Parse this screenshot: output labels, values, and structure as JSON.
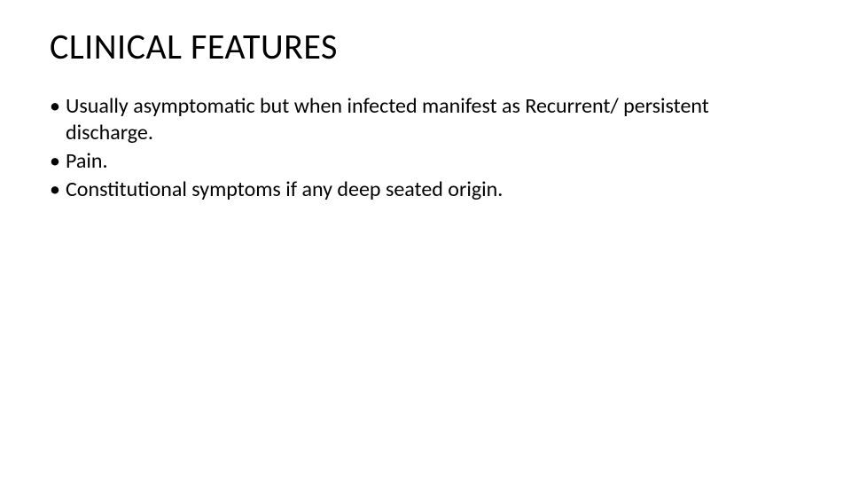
{
  "slide": {
    "title": "CLINICAL FEATURES",
    "title_fontsize": 40,
    "title_color": "#000000",
    "body_fontsize": 24,
    "body_color": "#000000",
    "background_color": "#ffffff",
    "bullets": [
      {
        "marker": "•",
        "text": "Usually asymptomatic but when infected manifest as Recurrent/ persistent discharge."
      },
      {
        "marker": "•",
        "text": "Pain."
      },
      {
        "marker": "•",
        "text": "Constitutional symptoms if any deep seated origin."
      }
    ]
  }
}
